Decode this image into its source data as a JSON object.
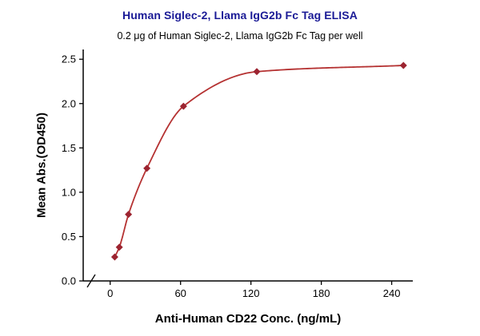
{
  "chart_data": {
    "type": "scatter",
    "title": "Human Siglec-2, Llama IgG2b Fc Tag ELISA",
    "subtitle": "0.2 μg of Human Siglec-2, Llama IgG2b Fc Tag per well",
    "xlabel": "Anti-Human CD22 Conc. (ng/mL)",
    "ylabel": "Mean Abs.(OD450)",
    "x": [
      3.9,
      7.8,
      15.6,
      31.3,
      62.5,
      125,
      250
    ],
    "y": [
      0.27,
      0.38,
      0.75,
      1.27,
      1.97,
      2.36,
      2.43
    ],
    "curve": "smooth sigmoidal fit through points",
    "marker": "diamond",
    "grid": false,
    "legend": "none",
    "xlim": [
      -23,
      258
    ],
    "ylim": [
      0,
      2.61
    ],
    "xticks": [
      {
        "v": 0,
        "label": "0"
      },
      {
        "v": 60,
        "label": "60"
      },
      {
        "v": 120,
        "label": "120"
      },
      {
        "v": 180,
        "label": "180"
      },
      {
        "v": 240,
        "label": "240"
      }
    ],
    "yticks": [
      {
        "v": 0,
        "label": "0.0"
      },
      {
        "v": 0.5,
        "label": "0.5"
      },
      {
        "v": 1,
        "label": "1.0"
      },
      {
        "v": 1.5,
        "label": "1.5"
      },
      {
        "v": 2,
        "label": "2.0"
      },
      {
        "v": 2.5,
        "label": "2.5"
      }
    ],
    "colors": {
      "title": "#1a1a96",
      "line": "#b53232",
      "marker": "#9c2430",
      "axis": "#000000",
      "text": "#000000"
    }
  }
}
